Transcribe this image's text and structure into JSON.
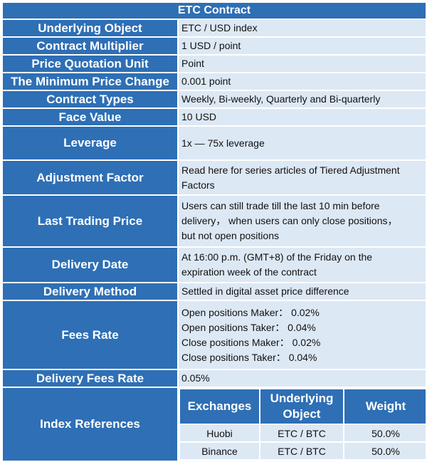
{
  "title": "ETC Contract",
  "rows": [
    {
      "label": "Underlying Object",
      "value": [
        "ETC / USD index"
      ]
    },
    {
      "label": "Contract Multiplier",
      "value": [
        "1 USD / point"
      ]
    },
    {
      "label": "Price Quotation Unit",
      "value": [
        "Point"
      ]
    },
    {
      "label": "The Minimum Price Change",
      "value": [
        "0.001 point"
      ]
    },
    {
      "label": "Contract Types",
      "value": [
        "Weekly, Bi-weekly, Quarterly and Bi-quarterly"
      ]
    },
    {
      "label": "Face Value",
      "value": [
        "10 USD"
      ]
    },
    {
      "label": "Leverage",
      "value": [
        "1x — 75x leverage"
      ]
    },
    {
      "label": "Adjustment Factor",
      "value": [
        "Read here for series articles of Tiered Adjustment",
        "Factors"
      ]
    },
    {
      "label": "Last Trading Price",
      "value": [
        "Users can still trade till the last 10 min before",
        "delivery， when users can only close positions，",
        "but not open positions"
      ]
    },
    {
      "label": "Delivery Date",
      "value": [
        "At 16:00 p.m. (GMT+8) of the Friday on the",
        "expiration week of the contract"
      ]
    },
    {
      "label": "Delivery Method",
      "value": [
        "Settled in digital asset price difference"
      ]
    },
    {
      "label": "Fees Rate",
      "value": [
        "Open positions Maker： 0.02%",
        "Open positions Taker： 0.04%",
        "Close positions Maker： 0.02%",
        "Close positions Taker： 0.04%"
      ]
    },
    {
      "label": "Delivery Fees Rate",
      "value": [
        "0.05%"
      ]
    }
  ],
  "index": {
    "label": "Index References",
    "headers": [
      "Exchanges",
      "Underlying Object",
      "Weight"
    ],
    "rows": [
      [
        "Huobi",
        "ETC / BTC",
        "50.0%"
      ],
      [
        "Binance",
        "ETC / BTC",
        "50.0%"
      ]
    ]
  }
}
